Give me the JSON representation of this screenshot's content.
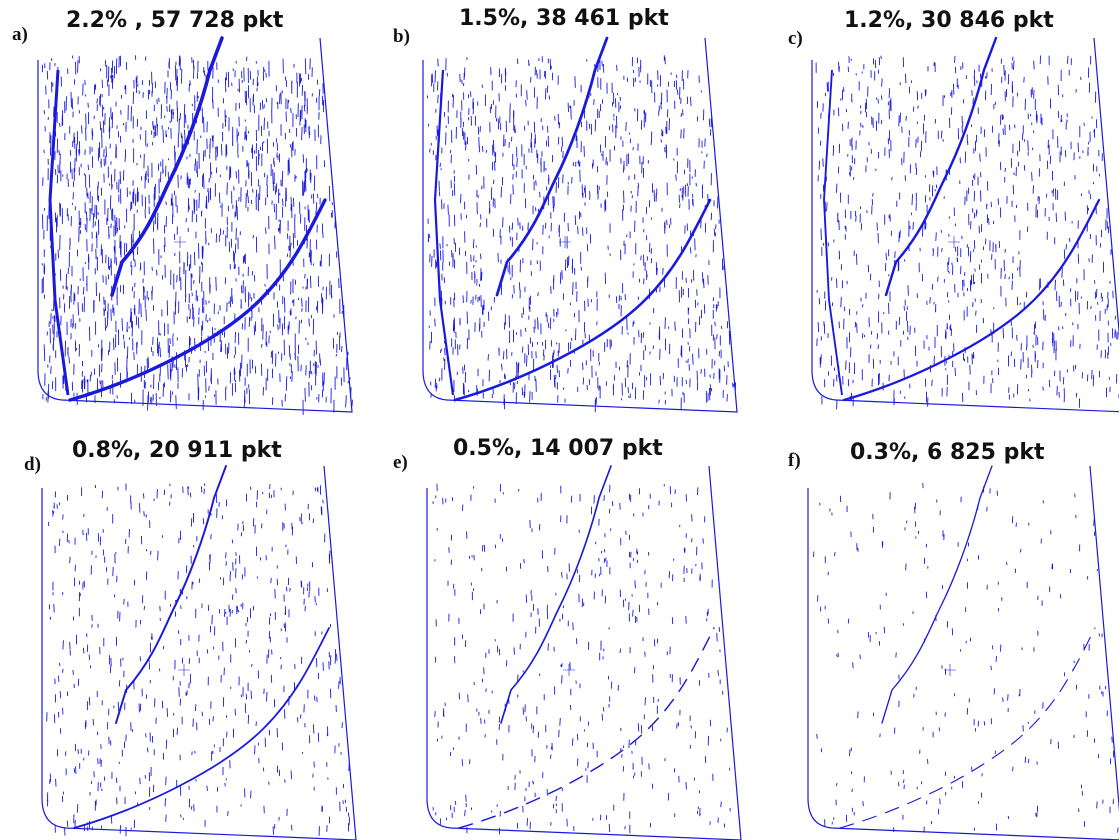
{
  "colors": {
    "points": "#1a1adf",
    "background": "#ffffff",
    "text": "#111111"
  },
  "panels": [
    {
      "letter": "a)",
      "title": "2.2% , 57 728 pkt",
      "density": 1.0
    },
    {
      "letter": "b)",
      "title": "1.5%, 38 461 pkt",
      "density": 0.68
    },
    {
      "letter": "c)",
      "title": "1.2%, 30 846 pkt",
      "density": 0.55
    },
    {
      "letter": "d)",
      "title": "0.8%, 20 911 pkt",
      "density": 0.37
    },
    {
      "letter": "e)",
      "title": "0.5%, 14 007 pkt",
      "density": 0.25
    },
    {
      "letter": "f)",
      "title": "0.3%, 6 825 pkt",
      "density": 0.12
    }
  ]
}
